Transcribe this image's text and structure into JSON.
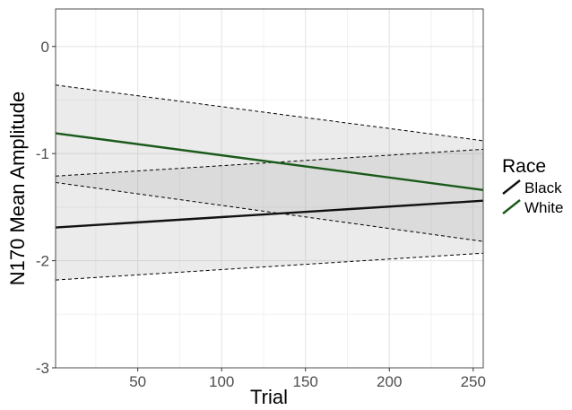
{
  "chart_data": {
    "type": "line",
    "xlabel": "Trial",
    "ylabel": "N170 Mean Amplitude",
    "xlim": [
      1,
      256
    ],
    "ylim": [
      -3,
      0.35
    ],
    "xticks": [
      50,
      100,
      150,
      200,
      250
    ],
    "yticks": [
      0,
      -1,
      -2,
      -3
    ],
    "x_tick_labels": [
      "50",
      "100",
      "150",
      "200",
      "250"
    ],
    "y_tick_labels": [
      "0",
      "-1",
      "-2",
      "-3"
    ],
    "grid": true,
    "legend": {
      "title": "Race",
      "position": "right"
    },
    "series": [
      {
        "name": "Black",
        "color": "#111111",
        "x": [
          1,
          256
        ],
        "y": [
          -1.69,
          -1.44
        ],
        "ci_lower": [
          -2.18,
          -1.93
        ],
        "ci_upper": [
          -1.21,
          -0.96
        ]
      },
      {
        "name": "White",
        "color": "#1a5a1a",
        "x": [
          1,
          256
        ],
        "y": [
          -0.81,
          -1.34
        ],
        "ci_lower": [
          -1.27,
          -1.82
        ],
        "ci_upper": [
          -0.36,
          -0.88
        ]
      }
    ]
  }
}
